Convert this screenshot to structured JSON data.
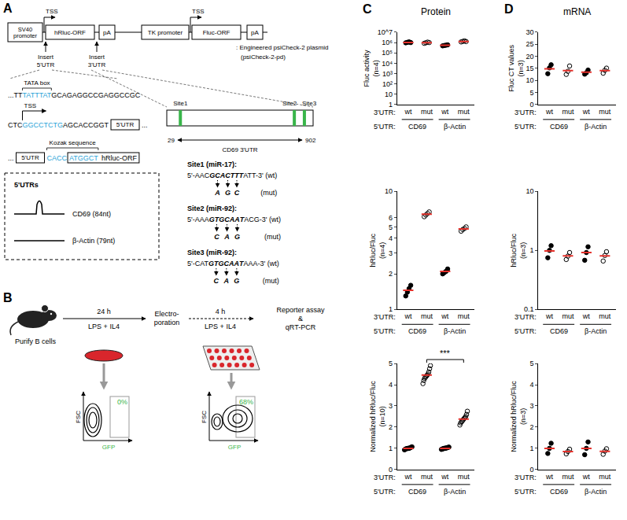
{
  "panels": {
    "A": {
      "label": "A",
      "construct": {
        "promoter": [
          "SV40",
          "promoter"
        ],
        "tss": "TSS",
        "orf1": "hRluc-ORF",
        "pa": "pA",
        "promoter2": "TK promoter",
        "orf2": "Fluc-ORF",
        "key": [
          ": Engineered psiCheck-2 plasmid",
          "(psiCheck-2-pd)"
        ]
      },
      "inserts": [
        [
          "Insert",
          "5'UTR"
        ],
        [
          "Insert",
          "3'UTR"
        ]
      ],
      "sequences": {
        "tata_label": "TATA box",
        "line1": [
          {
            "text": "...TT",
            "color": "#000000"
          },
          {
            "text": "TATTTAT",
            "color": "#2aa3d8"
          },
          {
            "text": "GCAGAGGCCGAGGCCGC",
            "color": "#000000"
          }
        ],
        "tss_label": "TSS",
        "line2": [
          {
            "text": "CTC",
            "color": "#000000"
          },
          {
            "text": "GGCCTCTG",
            "color": "#2aa3d8"
          },
          {
            "text": "AGCACCGGT",
            "color": "#000000"
          }
        ],
        "utr_box": "5'UTR",
        "ellipsis": "...",
        "kozak_label": "Kozak sequence",
        "kozak": {
          "text": "CACC",
          "color": "#2aa3d8"
        },
        "start": {
          "text": "ATGGCT",
          "color": "#2aa3d8"
        },
        "orf": "hRluc-ORF"
      },
      "utr5": {
        "title": "5'UTRs",
        "items": [
          {
            "name": "CD69 (84nt)",
            "shape": "hairpin"
          },
          {
            "name": "β-Actin (79nt)",
            "shape": "linear"
          }
        ]
      },
      "utr3": {
        "sites": [
          "Site1",
          "Site2",
          "Site3"
        ],
        "positions": [
          110,
          790,
          850
        ],
        "start": 29,
        "end": 902,
        "name": "CD69 3'UTR",
        "color": "#39b54a"
      },
      "sites": [
        {
          "title": "Site1 (miR-17):",
          "prefix": "5'-AAC",
          "motif": "GCACTTT",
          "suffix": "ATT-3' (wt)",
          "mut": [
            "A",
            "G",
            "C"
          ],
          "mut_label": "(mut)"
        },
        {
          "title": "Site2 (miR-92):",
          "prefix": "5'-AAA",
          "motif": "GTGCAAT",
          "suffix": "ACG-3' (wt)",
          "mut": [
            "C",
            "A",
            "G"
          ],
          "mut_label": "(mut)"
        },
        {
          "title": "Site3 (miR-92):",
          "prefix": "5'-CAT",
          "motif": "GTGCAAT",
          "suffix": "AAA-3' (wt)",
          "mut": [
            "C",
            "A",
            "G"
          ],
          "mut_label": "(mut)"
        }
      ]
    },
    "B": {
      "label": "B",
      "step1": "Purify B cells",
      "t1": "24 h",
      "cond1": "LPS + IL4",
      "step2": [
        "Electro-",
        "poration"
      ],
      "t2": "4 h",
      "cond2": "LPS + IL4",
      "step3": [
        "Reporter assay",
        "&",
        "qRT-PCR"
      ],
      "facs": [
        {
          "x_label": "GFP",
          "y_label": "FSC",
          "gate_label": "0%"
        },
        {
          "x_label": "GFP",
          "y_label": "FSC",
          "gate_label": "68%"
        }
      ]
    }
  },
  "columns": [
    {
      "label": "C",
      "title": "Protein"
    },
    {
      "label": "D",
      "title": "mRNA"
    }
  ],
  "chart_data": [
    {
      "type": "dot",
      "ylabel": [
        "Fluc activity",
        "(n=4)"
      ],
      "log": "y",
      "ylim": [
        1,
        10000000
      ],
      "yticks": [
        1,
        10,
        {
          "value": 100,
          "label": "10²"
        },
        {
          "value": 1000,
          "label": "10³"
        },
        {
          "value": 10000,
          "label": "10⁴"
        },
        {
          "value": 100000,
          "label": "10⁵"
        },
        {
          "value": 1000000,
          "label": "10⁶"
        },
        {
          "value": 10000000,
          "label": "10^7"
        }
      ],
      "grid": false,
      "categories": [
        "wt",
        "mut",
        "wt",
        "mut"
      ],
      "category_title": "3'UTR:",
      "groups": [
        "CD69",
        "β-Actin"
      ],
      "group_title": "5'UTR:",
      "series": [
        {
          "marker": "filled",
          "color": "#000000",
          "values": [
            [
              950000,
              1050000,
              1150000,
              1000000
            ],
            null,
            [
              480000,
              520000,
              560000,
              600000
            ],
            null
          ]
        },
        {
          "marker": "open",
          "color": "#000000",
          "values": [
            null,
            [
              850000,
              950000,
              1100000,
              1000000
            ],
            null,
            [
              1150000,
              1300000,
              1450000,
              1250000
            ]
          ]
        },
        {
          "type": "mean",
          "color": "#e4312b",
          "values": [
            1040000,
            975000,
            540000,
            1290000
          ]
        }
      ]
    },
    {
      "type": "dot",
      "ylabel": [
        "hRluc/Fluc",
        "(n=4)"
      ],
      "log": "y",
      "ylim": [
        1,
        10
      ],
      "yticks": [
        1,
        2,
        3,
        4,
        5,
        6,
        10
      ],
      "grid": false,
      "categories": [
        "wt",
        "mut",
        "wt",
        "mut"
      ],
      "category_title": "3'UTR:",
      "groups": [
        "CD69",
        "β-Actin"
      ],
      "group_title": "5'UTR:",
      "series": [
        {
          "marker": "filled",
          "color": "#000000",
          "values": [
            [
              1.3,
              1.4,
              1.5,
              1.6
            ],
            null,
            [
              2.0,
              2.05,
              2.1,
              2.2
            ],
            null
          ]
        },
        {
          "marker": "open",
          "color": "#000000",
          "values": [
            null,
            [
              6.1,
              6.3,
              6.5,
              6.7
            ],
            null,
            [
              4.6,
              4.75,
              4.85,
              5.0
            ]
          ]
        },
        {
          "type": "mean",
          "color": "#e4312b",
          "values": [
            1.45,
            6.4,
            2.1,
            4.8
          ]
        }
      ]
    },
    {
      "type": "dot",
      "ylabel": [
        "Normalized hRluc/Fluc",
        "(n=10)"
      ],
      "ylim": [
        0,
        5
      ],
      "yticks": [
        0,
        1,
        2,
        3,
        4,
        5
      ],
      "grid": false,
      "categories": [
        "wt",
        "mut",
        "wt",
        "mut"
      ],
      "category_title": "3'UTR:",
      "groups": [
        "CD69",
        "β-Actin"
      ],
      "group_title": "5'UTR:",
      "series": [
        {
          "marker": "filled",
          "color": "#000000",
          "values": [
            [
              0.93,
              0.96,
              0.98,
              0.99,
              1.0,
              1.0,
              1.01,
              1.03,
              1.05,
              1.07
            ],
            null,
            [
              0.95,
              0.97,
              0.98,
              1.0,
              1.0,
              1.01,
              1.02,
              1.03,
              1.04,
              1.06
            ],
            null
          ]
        },
        {
          "marker": "open",
          "color": "#000000",
          "values": [
            null,
            [
              4.05,
              4.2,
              4.3,
              4.35,
              4.4,
              4.45,
              4.5,
              4.6,
              4.75,
              4.9
            ],
            null,
            [
              2.1,
              2.2,
              2.25,
              2.3,
              2.35,
              2.4,
              2.45,
              2.5,
              2.6,
              2.75
            ]
          ]
        },
        {
          "type": "mean",
          "color": "#e4312b",
          "values": [
            1.0,
            4.45,
            1.0,
            2.38
          ]
        }
      ],
      "annotations": [
        {
          "text": "***",
          "from": 1,
          "to": 3
        }
      ]
    },
    {
      "type": "dot",
      "ylabel": [
        "Fluc CT values",
        "(n=3)"
      ],
      "ylim": [
        0,
        30
      ],
      "yticks": [
        0,
        5,
        10,
        15,
        20,
        25,
        30
      ],
      "grid": false,
      "categories": [
        "wt",
        "mut",
        "wt",
        "mut"
      ],
      "category_title": "3'UTR:",
      "groups": [
        "CD69",
        "β-Actin"
      ],
      "group_title": "5'UTR:",
      "series": [
        {
          "marker": "filled",
          "color": "#000000",
          "values": [
            [
              12.8,
              15.2,
              16.5
            ],
            null,
            [
              12.6,
              13.2,
              14.3
            ],
            null
          ]
        },
        {
          "marker": "open",
          "color": "#000000",
          "values": [
            null,
            [
              12.5,
              13.8,
              16.0
            ],
            null,
            [
              13.0,
              14.2,
              15.1
            ]
          ]
        },
        {
          "type": "mean",
          "color": "#e4312b",
          "values": [
            14.8,
            14.1,
            13.4,
            14.1
          ]
        }
      ]
    },
    {
      "type": "dot",
      "ylabel": [
        "hRluc/Fluc",
        "(n=3)"
      ],
      "log": "y",
      "ylim": [
        0.1,
        10
      ],
      "yticks": [
        0.1,
        1,
        10
      ],
      "grid": false,
      "categories": [
        "wt",
        "mut",
        "wt",
        "mut"
      ],
      "category_title": "3'UTR:",
      "groups": [
        "CD69",
        "β-Actin"
      ],
      "group_title": "5'UTR:",
      "series": [
        {
          "marker": "filled",
          "color": "#000000",
          "values": [
            [
              0.75,
              1.0,
              1.2
            ],
            null,
            [
              0.68,
              0.92,
              1.15
            ],
            null
          ]
        },
        {
          "marker": "open",
          "color": "#000000",
          "values": [
            null,
            [
              0.7,
              0.8,
              0.92
            ],
            null,
            [
              0.66,
              0.82,
              0.95
            ]
          ]
        },
        {
          "type": "mean",
          "color": "#e4312b",
          "values": [
            0.98,
            0.81,
            0.92,
            0.81
          ]
        }
      ]
    },
    {
      "type": "dot",
      "ylabel": [
        "Normalized hRluc/Fluc",
        "(n=3)"
      ],
      "ylim": [
        0,
        5
      ],
      "yticks": [
        0,
        1,
        2,
        3,
        4,
        5
      ],
      "grid": false,
      "categories": [
        "wt",
        "mut",
        "wt",
        "mut"
      ],
      "category_title": "3'UTR:",
      "groups": [
        "CD69",
        "β-Actin"
      ],
      "group_title": "5'UTR:",
      "series": [
        {
          "marker": "filled",
          "color": "#000000",
          "values": [
            [
              0.76,
              1.0,
              1.24
            ],
            null,
            [
              0.7,
              1.0,
              1.3
            ],
            null
          ]
        },
        {
          "marker": "open",
          "color": "#000000",
          "values": [
            null,
            [
              0.74,
              0.85,
              0.96
            ],
            null,
            [
              0.72,
              0.87,
              0.98
            ]
          ]
        },
        {
          "type": "mean",
          "color": "#e4312b",
          "values": [
            1.0,
            0.85,
            1.0,
            0.86
          ]
        }
      ]
    }
  ]
}
